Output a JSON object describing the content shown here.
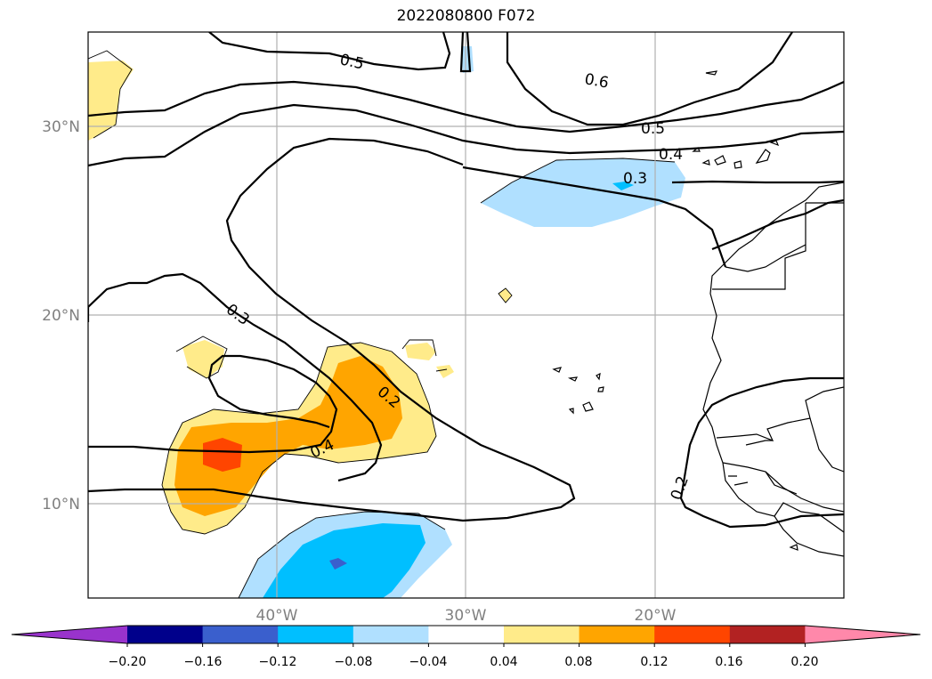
{
  "title": "2022080800 F072",
  "map": {
    "extent": {
      "lon": [
        -50,
        -10
      ],
      "lat": [
        5,
        35
      ]
    },
    "lat_labels": [
      "30°N",
      "20°N",
      "10°N"
    ],
    "lon_labels": [
      "40°W",
      "30°W",
      "20°W"
    ],
    "contour_labels": [
      "0.5",
      "0.6",
      "0.5",
      "0.4",
      "0.3",
      "0.3",
      "0.2",
      "0.4",
      "0.2"
    ]
  },
  "colorbar": {
    "tick_labels": [
      "−0.20",
      "−0.16",
      "−0.12",
      "−0.08",
      "−0.04",
      "0.04",
      "0.08",
      "0.12",
      "0.16",
      "0.20"
    ],
    "colors": [
      "#9933cc",
      "#00008b",
      "#3a5fcd",
      "#00bfff",
      "#b0e0ff",
      "#ffffff",
      "#ffeb8a",
      "#ffa500",
      "#ff4500",
      "#b22222",
      "#ff88aa"
    ]
  }
}
